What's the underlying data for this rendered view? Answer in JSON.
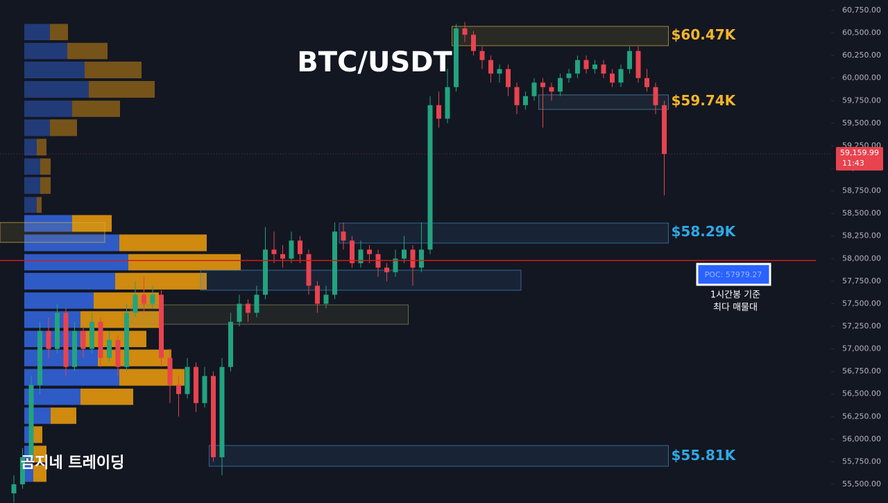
{
  "chart_data": {
    "type": "candlestick",
    "title": "BTC/USDT",
    "watermark": "곰지네 트레이딩",
    "ylim": [
      55293,
      60865
    ],
    "yticks": [
      {
        "value": 55500,
        "label": "55,500.00"
      },
      {
        "value": 55750,
        "label": "55,750.00"
      },
      {
        "value": 56000,
        "label": "56,000.00"
      },
      {
        "value": 56250,
        "label": "56,250.00"
      },
      {
        "value": 56500,
        "label": "56,500.00"
      },
      {
        "value": 56750,
        "label": "56,750.00"
      },
      {
        "value": 57000,
        "label": "57,000.00"
      },
      {
        "value": 57250,
        "label": "57,250.00"
      },
      {
        "value": 57500,
        "label": "57,500.00"
      },
      {
        "value": 57750,
        "label": "57,750.00"
      },
      {
        "value": 58000,
        "label": "58,000.00"
      },
      {
        "value": 58250,
        "label": "58,250.00"
      },
      {
        "value": 58500,
        "label": "58,500.00"
      },
      {
        "value": 58750,
        "label": "58,750.00"
      },
      {
        "value": 59000,
        "label": "59,000.00"
      },
      {
        "value": 59250,
        "label": "59,250.00"
      },
      {
        "value": 59500,
        "label": "59,500.00"
      },
      {
        "value": 59750,
        "label": "59,750.00"
      },
      {
        "value": 60000,
        "label": "60,000.00"
      },
      {
        "value": 60250,
        "label": "60,250.00"
      },
      {
        "value": 60500,
        "label": "60,500.00"
      },
      {
        "value": 60750,
        "label": "60,750.00"
      }
    ],
    "up_color": "#22a37f",
    "down_color": "#e8434f",
    "candles": [
      [
        55400,
        55600,
        55300,
        55500
      ],
      [
        55500,
        55900,
        55450,
        55800
      ],
      [
        55800,
        56700,
        55750,
        56600
      ],
      [
        56600,
        57300,
        56500,
        57200
      ],
      [
        57200,
        57350,
        56900,
        57000
      ],
      [
        57000,
        57500,
        56950,
        57400
      ],
      [
        57400,
        57450,
        56700,
        56800
      ],
      [
        56800,
        57300,
        56750,
        57200
      ],
      [
        57200,
        57250,
        56900,
        57000
      ],
      [
        57000,
        57400,
        56950,
        57300
      ],
      [
        57300,
        57350,
        56800,
        56900
      ],
      [
        56900,
        57200,
        56850,
        57100
      ],
      [
        57100,
        57150,
        56700,
        56800
      ],
      [
        56800,
        57500,
        56750,
        57400
      ],
      [
        57400,
        57750,
        57350,
        57600
      ],
      [
        57600,
        57800,
        57400,
        57500
      ],
      [
        57500,
        57700,
        57450,
        57600
      ],
      [
        57600,
        57650,
        56800,
        56900
      ],
      [
        56900,
        57000,
        56400,
        56600
      ],
      [
        56600,
        56700,
        56250,
        56500
      ],
      [
        56500,
        56900,
        56450,
        56800
      ],
      [
        56800,
        56850,
        56300,
        56400
      ],
      [
        56400,
        56800,
        56350,
        56700
      ],
      [
        56700,
        56750,
        55750,
        55800
      ],
      [
        55800,
        56900,
        55600,
        56800
      ],
      [
        56800,
        57400,
        56750,
        57300
      ],
      [
        57300,
        57600,
        57250,
        57500
      ],
      [
        57500,
        57550,
        57300,
        57400
      ],
      [
        57400,
        57700,
        57350,
        57600
      ],
      [
        57600,
        58350,
        57550,
        58100
      ],
      [
        58100,
        58300,
        57950,
        58050
      ],
      [
        58050,
        58150,
        57900,
        58000
      ],
      [
        58000,
        58300,
        57950,
        58200
      ],
      [
        58200,
        58250,
        57950,
        58050
      ],
      [
        58050,
        58100,
        57600,
        57700
      ],
      [
        57700,
        57750,
        57400,
        57500
      ],
      [
        57500,
        57700,
        57450,
        57600
      ],
      [
        57600,
        58400,
        57550,
        58300
      ],
      [
        58300,
        58400,
        58100,
        58200
      ],
      [
        58200,
        58250,
        57900,
        57950
      ],
      [
        57950,
        58200,
        57900,
        58100
      ],
      [
        58100,
        58150,
        57950,
        58050
      ],
      [
        58050,
        58100,
        57800,
        57900
      ],
      [
        57900,
        57950,
        57750,
        57850
      ],
      [
        57850,
        58100,
        57800,
        58000
      ],
      [
        58000,
        58250,
        57950,
        58100
      ],
      [
        58100,
        58150,
        57700,
        57900
      ],
      [
        57900,
        58400,
        57850,
        58100
      ],
      [
        58100,
        59800,
        58050,
        59700
      ],
      [
        59700,
        59850,
        59450,
        59550
      ],
      [
        59550,
        60100,
        59500,
        59900
      ],
      [
        59900,
        60600,
        59850,
        60550
      ],
      [
        60550,
        60620,
        60400,
        60480
      ],
      [
        60480,
        60520,
        60250,
        60300
      ],
      [
        60300,
        60350,
        60100,
        60200
      ],
      [
        60200,
        60250,
        59950,
        60050
      ],
      [
        60050,
        60150,
        59950,
        60100
      ],
      [
        60100,
        60150,
        59800,
        59900
      ],
      [
        59900,
        59950,
        59600,
        59700
      ],
      [
        59700,
        59850,
        59650,
        59800
      ],
      [
        59800,
        60000,
        59750,
        59950
      ],
      [
        59950,
        60000,
        59450,
        59900
      ],
      [
        59900,
        59950,
        59750,
        59850
      ],
      [
        59850,
        60050,
        59800,
        60000
      ],
      [
        60000,
        60100,
        59950,
        60050
      ],
      [
        60050,
        60250,
        60000,
        60200
      ],
      [
        60200,
        60250,
        60050,
        60100
      ],
      [
        60100,
        60200,
        60050,
        60150
      ],
      [
        60150,
        60200,
        60000,
        60050
      ],
      [
        60050,
        60100,
        59900,
        59950
      ],
      [
        59950,
        60150,
        59900,
        60100
      ],
      [
        60100,
        60350,
        60050,
        60300
      ],
      [
        60300,
        60350,
        59950,
        60000
      ],
      [
        60000,
        60100,
        59850,
        59900
      ],
      [
        59900,
        59950,
        59600,
        59700
      ],
      [
        59700,
        59750,
        58700,
        59159.99
      ]
    ],
    "volume_profile": {
      "levels": [
        60510,
        60300,
        60090,
        59875,
        59660,
        59450,
        59235,
        59020,
        58810,
        58595,
        58390,
        58175,
        57960,
        57750,
        57535,
        57325,
        57110,
        56900,
        56685,
        56470,
        56260,
        56050,
        55835,
        55620
      ],
      "buy": [
        37,
        62,
        87,
        93,
        69,
        37,
        18,
        23,
        23,
        18,
        69,
        137,
        150,
        131,
        100,
        81,
        81,
        106,
        137,
        81,
        38,
        13,
        13,
        13
      ],
      "sell": [
        26,
        58,
        82,
        95,
        69,
        39,
        14,
        15,
        15,
        7,
        57,
        126,
        162,
        132,
        94,
        113,
        95,
        106,
        94,
        76,
        37,
        13,
        19,
        19
      ],
      "buy_color": "#2f5fd0",
      "sell_color": "#d9900f"
    },
    "zones": [
      {
        "low": 60359,
        "high": 60573,
        "from": 51,
        "to": 75,
        "color": "#d4b341",
        "value": 60470,
        "label": "$60.47K",
        "label_color": "#f5b52a"
      },
      {
        "low": 59653,
        "high": 59814,
        "from": 61,
        "to": 75,
        "color": "#5b8fb8",
        "value": 59740,
        "label": "$59.74K",
        "label_color": "#f5b52a"
      },
      {
        "low": 58172,
        "high": 58394,
        "from": 38,
        "to": 75,
        "color": "#3f86c9",
        "value": 58290,
        "label": "$58.29K",
        "label_color": "#2ea8e6"
      },
      {
        "low": 55700,
        "high": 55930,
        "from": 23,
        "to": 75,
        "color": "#3f86c9",
        "value": 55810,
        "label": "$55.81K",
        "label_color": "#2ea8e6"
      },
      {
        "low": 58180,
        "high": 58400,
        "from": 0,
        "to": 10,
        "color": "#d4b341"
      },
      {
        "low": 57650,
        "high": 57872,
        "from": 22,
        "to": 58,
        "color": "#3f86c9"
      },
      {
        "low": 57273,
        "high": 57488,
        "from": 14,
        "to": 45,
        "color": "#8a8a5a"
      }
    ],
    "poc": {
      "value": 57979.27,
      "label": "POC: 57979.27"
    },
    "poc_note": [
      "1시간봉 기준",
      "최다 매물대"
    ],
    "last_price": {
      "value": 59159.99,
      "label": "59,159.99"
    },
    "countdown": "11:43"
  }
}
